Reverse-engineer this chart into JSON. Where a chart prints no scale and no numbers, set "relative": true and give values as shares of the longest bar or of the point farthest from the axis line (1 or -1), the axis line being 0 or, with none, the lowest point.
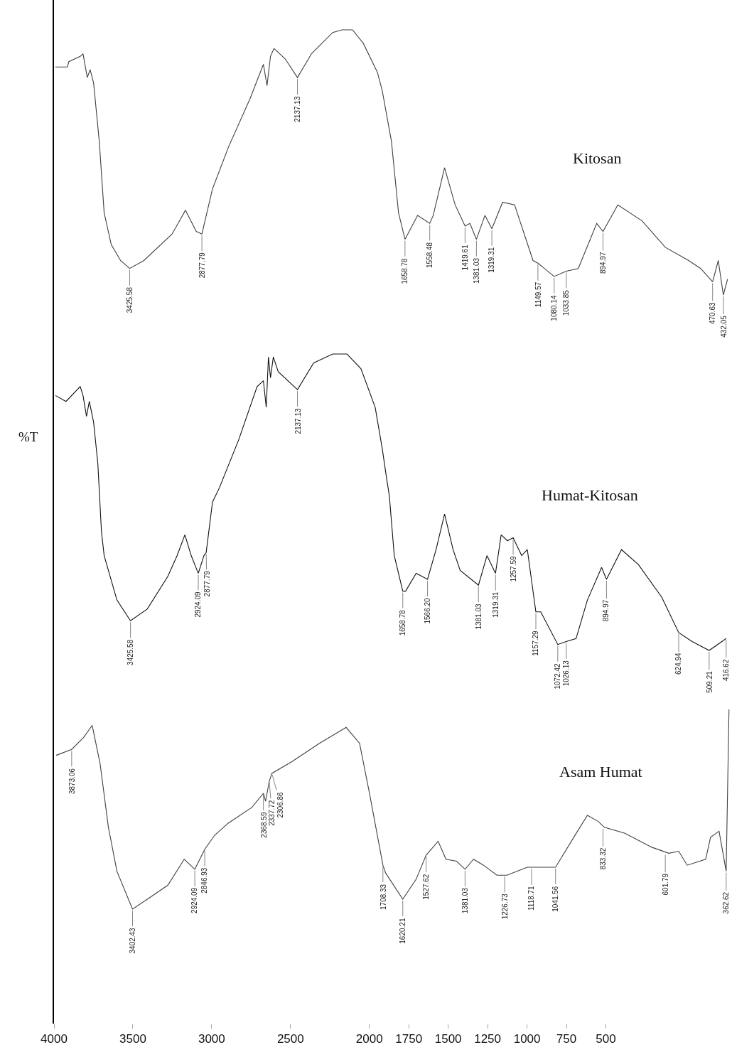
{
  "chart_data": [
    {
      "type": "line",
      "relative": true,
      "xlim": [
        4000,
        -300
      ],
      "tick_labels": false,
      "legend": false,
      "marker": "none",
      "line_style": "solid",
      "series": [
        {
          "name": "Kitosan",
          "color": "#404040",
          "x": [
            3992,
            3915,
            3906,
            3834,
            3816,
            3789,
            3771,
            3749,
            3713,
            3682,
            3637,
            3578,
            3520,
            3430,
            3251,
            3166,
            3098,
            3062,
            2995,
            2892,
            2757,
            2672,
            2649,
            2627,
            2605,
            2533,
            2456,
            2367,
            2232,
            2174,
            2107,
            2039,
            1949,
            1918,
            1860,
            1815,
            1774,
            1694,
            1617,
            1595,
            1523,
            1456,
            1393,
            1362,
            1321,
            1267,
            1223,
            1155,
            1079,
            962,
            931,
            828,
            751,
            675,
            558,
            518,
            424,
            271,
            123,
            -25,
            -101,
            -177,
            -213,
            -245,
            -272
          ],
          "values": [
            0.86,
            0.86,
            0.88,
            0.9,
            0.91,
            0.82,
            0.85,
            0.8,
            0.58,
            0.31,
            0.19,
            0.13,
            0.1,
            0.13,
            0.23,
            0.32,
            0.24,
            0.23,
            0.4,
            0.56,
            0.74,
            0.87,
            0.79,
            0.9,
            0.93,
            0.89,
            0.82,
            0.91,
            0.99,
            1.0,
            1.0,
            0.95,
            0.84,
            0.77,
            0.58,
            0.31,
            0.21,
            0.3,
            0.27,
            0.3,
            0.48,
            0.34,
            0.26,
            0.27,
            0.21,
            0.3,
            0.25,
            0.35,
            0.34,
            0.13,
            0.12,
            0.07,
            0.09,
            0.1,
            0.27,
            0.24,
            0.34,
            0.28,
            0.18,
            0.13,
            0.1,
            0.05,
            0.13,
            0.0,
            0.06
          ]
        }
      ],
      "annotations": [
        {
          "text": "3425.58",
          "x": 3520,
          "y": 0.1
        },
        {
          "text": "2877.79",
          "x": 3062,
          "y": 0.23
        },
        {
          "text": "2137.13",
          "x": 2456,
          "y": 0.82
        },
        {
          "text": "1658.78",
          "x": 1774,
          "y": 0.21
        },
        {
          "text": "1558.48",
          "x": 1617,
          "y": 0.27
        },
        {
          "text": "1419.61",
          "x": 1393,
          "y": 0.26
        },
        {
          "text": "1381.03",
          "x": 1321,
          "y": 0.21
        },
        {
          "text": "1319.31",
          "x": 1223,
          "y": 0.25
        },
        {
          "text": "1149.57",
          "x": 931,
          "y": 0.12
        },
        {
          "text": "1080.14",
          "x": 828,
          "y": 0.07
        },
        {
          "text": "1033.85",
          "x": 751,
          "y": 0.09
        },
        {
          "text": "894.97",
          "x": 518,
          "y": 0.24
        },
        {
          "text": "470.63",
          "x": -177,
          "y": 0.05
        },
        {
          "text": "432.05",
          "x": -245,
          "y": 0.0
        }
      ]
    },
    {
      "type": "line",
      "relative": true,
      "xlim": [
        4000,
        -300
      ],
      "tick_labels": false,
      "legend": false,
      "marker": "none",
      "line_style": "solid",
      "ylabel": "%T",
      "series": [
        {
          "name": "Humat-Kitosan",
          "color": "#111111",
          "x": [
            3991,
            3924,
            3834,
            3816,
            3794,
            3776,
            3749,
            3722,
            3699,
            3682,
            3601,
            3515,
            3408,
            3278,
            3219,
            3170,
            3130,
            3085,
            3049,
            3035,
            2995,
            2950,
            2829,
            2712,
            2672,
            2654,
            2640,
            2627,
            2609,
            2578,
            2456,
            2353,
            2232,
            2142,
            2053,
            1963,
            1918,
            1896,
            1873,
            1842,
            1788,
            1770,
            1703,
            1631,
            1577,
            1523,
            1469,
            1424,
            1308,
            1254,
            1200,
            1164,
            1124,
            1088,
            1034,
            998,
            944,
            913,
            805,
            751,
            689,
            617,
            527,
            496,
            401,
            294,
            146,
            38,
            -47,
            -155,
            -263
          ],
          "values": [
            0.86,
            0.84,
            0.89,
            0.86,
            0.79,
            0.84,
            0.77,
            0.63,
            0.4,
            0.32,
            0.17,
            0.1,
            0.14,
            0.25,
            0.32,
            0.39,
            0.32,
            0.26,
            0.32,
            0.33,
            0.5,
            0.55,
            0.71,
            0.89,
            0.91,
            0.82,
            0.99,
            0.92,
            0.99,
            0.94,
            0.88,
            0.97,
            1.0,
            1.0,
            0.95,
            0.82,
            0.68,
            0.6,
            0.52,
            0.32,
            0.2,
            0.2,
            0.26,
            0.24,
            0.34,
            0.46,
            0.34,
            0.27,
            0.22,
            0.32,
            0.26,
            0.39,
            0.37,
            0.38,
            0.32,
            0.34,
            0.13,
            0.13,
            0.02,
            0.03,
            0.04,
            0.17,
            0.28,
            0.24,
            0.34,
            0.29,
            0.18,
            0.06,
            0.03,
            0.0,
            0.04
          ]
        }
      ],
      "annotations": [
        {
          "text": "3425.58",
          "x": 3515,
          "y": 0.1
        },
        {
          "text": "2924.09",
          "x": 3085,
          "y": 0.26
        },
        {
          "text": "2877.79",
          "x": 3035,
          "y": 0.33
        },
        {
          "text": "2137.13",
          "x": 2456,
          "y": 0.88
        },
        {
          "text": "1658.78",
          "x": 1788,
          "y": 0.2
        },
        {
          "text": "1566.20",
          "x": 1631,
          "y": 0.24
        },
        {
          "text": "1381.03",
          "x": 1308,
          "y": 0.22
        },
        {
          "text": "1319.31",
          "x": 1200,
          "y": 0.26
        },
        {
          "text": "1257.59",
          "x": 1088,
          "y": 0.38
        },
        {
          "text": "1157.29",
          "x": 944,
          "y": 0.13
        },
        {
          "text": "1072.42",
          "x": 805,
          "y": 0.02
        },
        {
          "text": "1026.13",
          "x": 751,
          "y": 0.03
        },
        {
          "text": "894.97",
          "x": 496,
          "y": 0.24
        },
        {
          "text": "624.94",
          "x": 38,
          "y": 0.06
        },
        {
          "text": "509.21",
          "x": -155,
          "y": 0.0
        },
        {
          "text": "416.62",
          "x": -263,
          "y": 0.04
        }
      ]
    },
    {
      "type": "line",
      "relative": true,
      "xlim": [
        4000,
        -300
      ],
      "tick_labels": "x",
      "legend": false,
      "marker": "none",
      "line_style": "solid",
      "xticks": [
        4000,
        3500,
        3000,
        2500,
        2000,
        1750,
        1500,
        1250,
        1000,
        750,
        500
      ],
      "series": [
        {
          "name": "Asam Humat",
          "color": "#404040",
          "x": [
            3987,
            3888,
            3812,
            3758,
            3708,
            3655,
            3601,
            3502,
            3408,
            3278,
            3174,
            3107,
            3044,
            2981,
            2896,
            2744,
            2672,
            2658,
            2635,
            2618,
            2488,
            2317,
            2147,
            2062,
            1999,
            1914,
            1896,
            1788,
            1703,
            1640,
            1564,
            1514,
            1447,
            1393,
            1339,
            1276,
            1191,
            1128,
            998,
            819,
            680,
            617,
            550,
            509,
            379,
            209,
            101,
            38,
            -16,
            -133,
            -164,
            -218,
            -263,
            -281
          ],
          "values": [
            0.77,
            0.8,
            0.86,
            0.92,
            0.73,
            0.41,
            0.19,
            0.0,
            0.05,
            0.12,
            0.25,
            0.2,
            0.3,
            0.37,
            0.43,
            0.51,
            0.58,
            0.54,
            0.64,
            0.68,
            0.74,
            0.83,
            0.91,
            0.83,
            0.58,
            0.22,
            0.18,
            0.05,
            0.15,
            0.27,
            0.34,
            0.25,
            0.24,
            0.2,
            0.25,
            0.22,
            0.17,
            0.17,
            0.21,
            0.21,
            0.39,
            0.47,
            0.44,
            0.41,
            0.38,
            0.31,
            0.28,
            0.29,
            0.22,
            0.25,
            0.36,
            0.39,
            0.19,
            1.0
          ]
        }
      ],
      "annotations": [
        {
          "text": "3873.06",
          "x": 3888,
          "y": 0.8
        },
        {
          "text": "3402.43",
          "x": 3502,
          "y": 0.0
        },
        {
          "text": "2924.09",
          "x": 3107,
          "y": 0.2
        },
        {
          "text": "2846.93",
          "x": 3044,
          "y": 0.3
        },
        {
          "text": "2368.59",
          "x": 2672,
          "y": 0.58
        },
        {
          "text": "2337.72",
          "x": 2635,
          "y": 0.64
        },
        {
          "text": "2306.86",
          "x": 2618,
          "y": 0.68
        },
        {
          "text": "1708.33",
          "x": 1914,
          "y": 0.22
        },
        {
          "text": "1620.21",
          "x": 1788,
          "y": 0.05
        },
        {
          "text": "1527.62",
          "x": 1640,
          "y": 0.27
        },
        {
          "text": "1381.03",
          "x": 1393,
          "y": 0.2
        },
        {
          "text": "1226.73",
          "x": 1142,
          "y": 0.17
        },
        {
          "text": "1118.71",
          "x": 971,
          "y": 0.21
        },
        {
          "text": "1041.56",
          "x": 819,
          "y": 0.21
        },
        {
          "text": "833.32",
          "x": 518,
          "y": 0.41
        },
        {
          "text": "601.79",
          "x": 123,
          "y": 0.28
        },
        {
          "text": "362.62",
          "x": -263,
          "y": 0.19
        }
      ]
    }
  ]
}
